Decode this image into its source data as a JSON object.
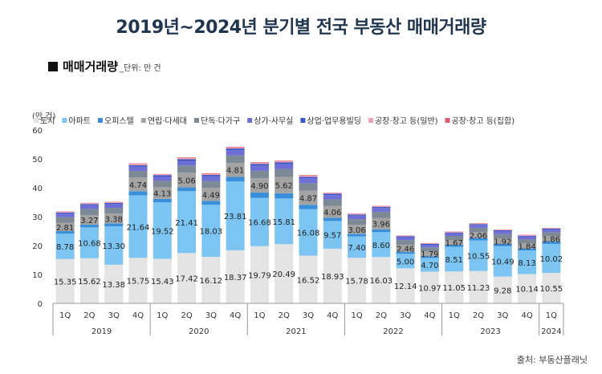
{
  "title": "2019년~2024년 분기별 전국 부동산 매매거래량",
  "section": {
    "label": "매매거래량",
    "unit": "_단위: 만 건"
  },
  "source": "출처: 부동산플래닛",
  "colors": {
    "title": "#1f3550",
    "series": [
      "#e4e4e4",
      "#7cc5f2",
      "#3a8fdb",
      "#a3a3a3",
      "#7e8996",
      "#6d6fd6",
      "#3b56c6",
      "#f0a0b0",
      "#e45b6d"
    ]
  },
  "chart_data": {
    "type": "bar",
    "stacked": true,
    "ylabel": "(만 건)",
    "ylim": [
      0,
      60
    ],
    "yticks": [
      0,
      10,
      20,
      30,
      40,
      50,
      60
    ],
    "grid": false,
    "legend_position": "top",
    "categories": [
      "1Q",
      "2Q",
      "3Q",
      "4Q",
      "1Q",
      "2Q",
      "3Q",
      "4Q",
      "1Q",
      "2Q",
      "3Q",
      "4Q",
      "1Q",
      "2Q",
      "3Q",
      "4Q",
      "1Q",
      "2Q",
      "3Q",
      "4Q",
      "1Q"
    ],
    "year_groups": [
      {
        "year": "2019",
        "count": 4
      },
      {
        "year": "2020",
        "count": 4
      },
      {
        "year": "2021",
        "count": 4
      },
      {
        "year": "2022",
        "count": 4
      },
      {
        "year": "2023",
        "count": 4
      },
      {
        "year": "2024",
        "count": 1
      }
    ],
    "series": [
      {
        "name": "토지",
        "values": [
          15.35,
          15.62,
          13.38,
          15.75,
          15.43,
          17.42,
          16.12,
          18.37,
          19.79,
          20.49,
          16.52,
          18.93,
          15.78,
          16.03,
          12.14,
          10.97,
          11.05,
          11.23,
          9.28,
          10.14,
          10.55
        ]
      },
      {
        "name": "아파트",
        "values": [
          8.78,
          10.68,
          13.3,
          21.64,
          19.52,
          21.41,
          18.03,
          23.81,
          16.68,
          15.81,
          16.08,
          9.57,
          7.4,
          8.6,
          5.0,
          4.7,
          8.51,
          10.55,
          10.49,
          8.13,
          10.02
        ]
      },
      {
        "name": "오피스텔",
        "values": [
          0.9,
          1.0,
          1.0,
          1.4,
          1.2,
          1.3,
          1.3,
          1.6,
          1.9,
          1.8,
          1.5,
          1.1,
          0.9,
          1.0,
          0.7,
          0.6,
          0.7,
          0.8,
          0.8,
          0.7,
          0.8
        ]
      },
      {
        "name": "연립·다세대",
        "values": [
          2.81,
          3.27,
          3.38,
          4.74,
          4.13,
          5.06,
          4.49,
          4.81,
          4.9,
          5.62,
          4.87,
          4.06,
          3.06,
          3.96,
          2.46,
          1.79,
          1.67,
          2.06,
          1.92,
          1.84,
          1.86
        ]
      },
      {
        "name": "단독·다가구",
        "values": [
          2.0,
          2.1,
          2.0,
          2.3,
          2.2,
          2.5,
          2.4,
          2.6,
          2.6,
          2.7,
          2.6,
          2.3,
          2.0,
          2.1,
          1.6,
          1.3,
          1.4,
          1.5,
          1.5,
          1.4,
          1.4
        ]
      },
      {
        "name": "상가·사무실",
        "values": [
          1.2,
          1.3,
          1.3,
          1.5,
          1.4,
          1.6,
          1.6,
          1.8,
          1.8,
          1.8,
          1.7,
          1.5,
          1.2,
          1.3,
          1.0,
          0.9,
          0.9,
          1.0,
          1.0,
          0.9,
          0.9
        ]
      },
      {
        "name": "상업·업무용빌딩",
        "values": [
          0.4,
          0.4,
          0.4,
          0.5,
          0.5,
          0.6,
          0.5,
          0.6,
          0.6,
          0.6,
          0.5,
          0.5,
          0.4,
          0.4,
          0.3,
          0.3,
          0.3,
          0.3,
          0.3,
          0.3,
          0.3
        ]
      },
      {
        "name": "공장·창고 등(일반)",
        "values": [
          0.3,
          0.3,
          0.3,
          0.4,
          0.3,
          0.4,
          0.4,
          0.4,
          0.4,
          0.4,
          0.4,
          0.3,
          0.3,
          0.3,
          0.2,
          0.2,
          0.2,
          0.2,
          0.2,
          0.2,
          0.2
        ]
      },
      {
        "name": "공장·창고 등(집합)",
        "values": [
          0.1,
          0.1,
          0.1,
          0.2,
          0.1,
          0.2,
          0.2,
          0.2,
          0.2,
          0.2,
          0.2,
          0.1,
          0.1,
          0.1,
          0.1,
          0.1,
          0.1,
          0.1,
          0.1,
          0.1,
          0.1
        ]
      }
    ],
    "labeled_series": [
      0,
      1,
      3
    ]
  }
}
